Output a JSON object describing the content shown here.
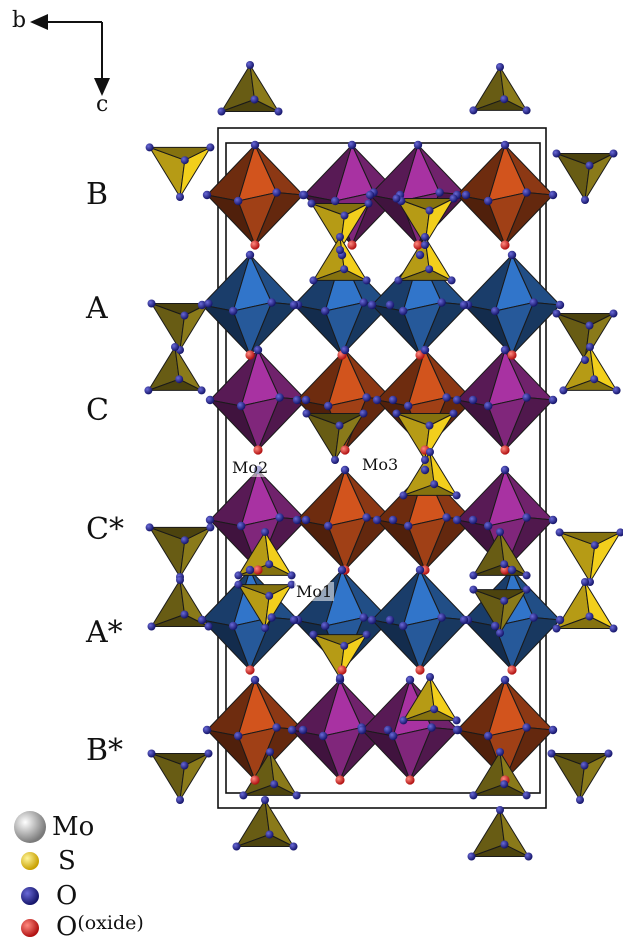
{
  "axes": {
    "horizontal": "b",
    "vertical": "c"
  },
  "layers": [
    "B",
    "A",
    "C",
    "C*",
    "A*",
    "B*"
  ],
  "sites": [
    "Mo2",
    "Mo3",
    "Mo1"
  ],
  "legend": [
    {
      "symbol": "Mo",
      "color": "#b9b9b9"
    },
    {
      "symbol": "S",
      "color": "#f2cf1c"
    },
    {
      "symbol": "O",
      "color": "#2a2a8c"
    },
    {
      "symbol": "O",
      "suffix": "(oxide)",
      "color": "#e0281f"
    }
  ],
  "colors": {
    "mo_orange": "#c8501c",
    "mo_magenta": "#a0309a",
    "mo_blue": "#2f6fc0",
    "so4_yellow": "#f2cf1c",
    "so4_olive": "#8a7a1a",
    "oxygen": "#2a2a8c",
    "oxide": "#e0281f"
  }
}
